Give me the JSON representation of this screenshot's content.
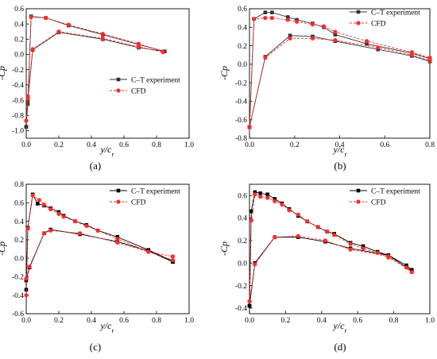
{
  "chart_data": [
    {
      "type": "line",
      "panel_label": "(a)",
      "xlabel": "y/c_r",
      "ylabel": "-Cp",
      "xlim": [
        0,
        1.0
      ],
      "ylim": [
        -1.1,
        0.6
      ],
      "xticks": [
        "0.0",
        "0.2",
        "0.4",
        "0.6",
        "0.8",
        "1.0"
      ],
      "yticks": [
        "-1.0",
        "-0.8",
        "-0.6",
        "-0.4",
        "-0.2",
        "0.0",
        "0.2",
        "0.4",
        "0.6"
      ],
      "xtick_values": [
        0,
        0.2,
        0.4,
        0.6,
        0.8,
        1.0
      ],
      "ytick_values": [
        -1.0,
        -0.8,
        -0.6,
        -0.4,
        -0.2,
        0.0,
        0.2,
        0.4,
        0.6
      ],
      "legend_position": "center-right",
      "series": [
        {
          "name": "C–T experiment",
          "color": "#333333",
          "dash": "solid",
          "marker": "square",
          "x": [
            0.0,
            0.01,
            0.03,
            0.12,
            0.26,
            0.47,
            0.69,
            0.85,
            0.85,
            0.69,
            0.47,
            0.2,
            0.04,
            0.01,
            0.0
          ],
          "y": [
            -0.95,
            -0.65,
            0.5,
            0.48,
            0.38,
            0.26,
            0.13,
            0.04,
            0.04,
            0.09,
            0.2,
            0.29,
            0.06,
            -0.6,
            -0.95
          ]
        },
        {
          "name": "CFD",
          "color": "#ff2a2a",
          "dash": "dashed",
          "marker": "circle",
          "x": [
            0.0,
            0.01,
            0.03,
            0.12,
            0.26,
            0.47,
            0.69,
            0.84,
            0.84,
            0.69,
            0.47,
            0.2,
            0.04,
            0.01,
            0.0
          ],
          "y": [
            -0.87,
            -0.58,
            0.49,
            0.48,
            0.39,
            0.27,
            0.14,
            0.04,
            0.03,
            0.1,
            0.21,
            0.3,
            0.07,
            -0.55,
            -0.87
          ]
        }
      ]
    },
    {
      "type": "line",
      "panel_label": "(b)",
      "xlabel": "y/c_r",
      "ylabel": "-Cp",
      "xlim": [
        0,
        0.8
      ],
      "ylim": [
        -0.8,
        0.6
      ],
      "xticks": [
        "0.0",
        "0.2",
        "0.4",
        "0.6",
        "0.8"
      ],
      "yticks": [
        "-0.8",
        "-0.6",
        "-0.4",
        "-0.2",
        "0.0",
        "0.2",
        "0.4",
        "0.6"
      ],
      "xtick_values": [
        0,
        0.2,
        0.4,
        0.6,
        0.8
      ],
      "ytick_values": [
        -0.8,
        -0.6,
        -0.4,
        -0.2,
        0.0,
        0.2,
        0.4,
        0.6
      ],
      "legend_position": "top-right",
      "series": [
        {
          "name": "C–T experiment",
          "color": "#333333",
          "dash": "solid",
          "marker": "square",
          "x": [
            0.0,
            0.02,
            0.07,
            0.1,
            0.17,
            0.21,
            0.28,
            0.33,
            0.38,
            0.52,
            0.72,
            0.8,
            0.8,
            0.72,
            0.57,
            0.38,
            0.28,
            0.18,
            0.07,
            0.0
          ],
          "y": [
            -0.68,
            0.49,
            0.56,
            0.56,
            0.51,
            0.48,
            0.44,
            0.4,
            0.32,
            0.22,
            0.12,
            0.06,
            0.03,
            0.09,
            0.16,
            0.25,
            0.3,
            0.31,
            0.08,
            -0.68
          ]
        },
        {
          "name": "CFD",
          "color": "#ff2a2a",
          "dash": "dashed",
          "marker": "circle",
          "x": [
            0.0,
            0.02,
            0.07,
            0.1,
            0.17,
            0.21,
            0.28,
            0.33,
            0.38,
            0.52,
            0.72,
            0.8,
            0.8,
            0.72,
            0.57,
            0.38,
            0.28,
            0.18,
            0.07,
            0.0
          ],
          "y": [
            -0.68,
            0.49,
            0.5,
            0.5,
            0.48,
            0.46,
            0.43,
            0.41,
            0.35,
            0.25,
            0.13,
            0.07,
            0.04,
            0.1,
            0.18,
            0.26,
            0.28,
            0.28,
            0.07,
            -0.68
          ]
        }
      ]
    },
    {
      "type": "line",
      "panel_label": "(c)",
      "xlabel": "y/c_r",
      "ylabel": "-Cp",
      "xlim": [
        0,
        1.0
      ],
      "ylim": [
        -0.6,
        0.8
      ],
      "xticks": [
        "0.0",
        "0.2",
        "0.4",
        "0.6",
        "0.8",
        "1.0"
      ],
      "yticks": [
        "-0.6",
        "-0.4",
        "-0.2",
        "0.0",
        "0.2",
        "0.4",
        "0.6",
        "0.8"
      ],
      "xtick_values": [
        0,
        0.2,
        0.4,
        0.6,
        0.8,
        1.0
      ],
      "ytick_values": [
        -0.6,
        -0.4,
        -0.2,
        0.0,
        0.2,
        0.4,
        0.6,
        0.8
      ],
      "legend_position": "top-right",
      "series": [
        {
          "name": "C–T experiment",
          "color": "#000000",
          "dash": "solid",
          "marker": "square",
          "x": [
            0.0,
            0.01,
            0.04,
            0.07,
            0.11,
            0.15,
            0.2,
            0.23,
            0.3,
            0.37,
            0.44,
            0.56,
            0.75,
            0.9,
            0.9,
            0.75,
            0.56,
            0.33,
            0.15,
            0.11,
            0.02,
            0.0
          ],
          "y": [
            -0.34,
            0.33,
            0.69,
            0.59,
            0.57,
            0.54,
            0.5,
            0.46,
            0.4,
            0.36,
            0.3,
            0.23,
            0.09,
            -0.03,
            -0.04,
            0.08,
            0.18,
            0.26,
            0.31,
            0.27,
            -0.1,
            -0.24
          ]
        },
        {
          "name": "CFD",
          "color": "#ff2a2a",
          "dash": "dashed",
          "marker": "circle",
          "x": [
            0.0,
            0.01,
            0.04,
            0.08,
            0.11,
            0.15,
            0.2,
            0.23,
            0.3,
            0.37,
            0.44,
            0.56,
            0.75,
            0.9,
            0.9,
            0.75,
            0.56,
            0.33,
            0.15,
            0.11,
            0.02,
            0.0
          ],
          "y": [
            -0.4,
            0.32,
            0.68,
            0.63,
            0.58,
            0.53,
            0.48,
            0.45,
            0.4,
            0.35,
            0.3,
            0.21,
            0.07,
            0.02,
            -0.02,
            0.07,
            0.17,
            0.27,
            0.3,
            0.27,
            -0.09,
            -0.22
          ]
        }
      ]
    },
    {
      "type": "line",
      "panel_label": "(d)",
      "xlabel": "y/c_r",
      "ylabel": "-Cp",
      "xlim": [
        0,
        1.0
      ],
      "ylim": [
        -0.45,
        0.7
      ],
      "xticks": [
        "0.0",
        "0.2",
        "0.4",
        "0.6",
        "0.8",
        "1.0"
      ],
      "yticks": [
        "-0.4",
        "-0.2",
        "0.0",
        "0.2",
        "0.4",
        "0.6"
      ],
      "xtick_values": [
        0,
        0.2,
        0.4,
        0.6,
        0.8,
        1.0
      ],
      "ytick_values": [
        -0.4,
        -0.2,
        0.0,
        0.2,
        0.4,
        0.6
      ],
      "legend_position": "top-right",
      "series": [
        {
          "name": "C–T experiment",
          "color": "#000000",
          "dash": "solid",
          "marker": "square",
          "x": [
            0.0,
            0.01,
            0.03,
            0.06,
            0.1,
            0.14,
            0.18,
            0.22,
            0.27,
            0.32,
            0.38,
            0.43,
            0.47,
            0.56,
            0.63,
            0.71,
            0.77,
            0.87,
            0.9,
            0.9,
            0.77,
            0.56,
            0.42,
            0.27,
            0.14,
            0.03,
            0.0
          ],
          "y": [
            -0.38,
            0.46,
            0.63,
            0.62,
            0.61,
            0.57,
            0.53,
            0.48,
            0.42,
            0.37,
            0.32,
            0.28,
            0.26,
            0.18,
            0.15,
            0.1,
            0.07,
            -0.02,
            -0.06,
            -0.07,
            0.07,
            0.13,
            0.19,
            0.23,
            0.23,
            0.0,
            -0.38
          ]
        },
        {
          "name": "CFD",
          "color": "#ff2a2a",
          "dash": "dashed",
          "marker": "circle",
          "x": [
            0.0,
            0.01,
            0.03,
            0.06,
            0.1,
            0.14,
            0.18,
            0.22,
            0.27,
            0.32,
            0.38,
            0.43,
            0.47,
            0.56,
            0.63,
            0.71,
            0.77,
            0.87,
            0.9,
            0.9,
            0.77,
            0.56,
            0.42,
            0.27,
            0.14,
            0.03,
            0.0
          ],
          "y": [
            -0.34,
            0.38,
            0.61,
            0.59,
            0.58,
            0.55,
            0.52,
            0.47,
            0.43,
            0.37,
            0.32,
            0.28,
            0.25,
            0.17,
            0.13,
            0.09,
            0.05,
            -0.04,
            -0.08,
            -0.08,
            0.06,
            0.12,
            0.2,
            0.24,
            0.23,
            -0.01,
            -0.34
          ]
        }
      ]
    }
  ]
}
